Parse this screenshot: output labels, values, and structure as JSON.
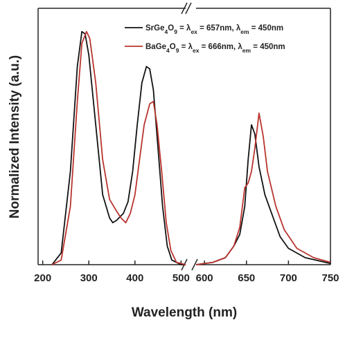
{
  "chart_data": {
    "type": "line",
    "x_label": "Wavelength (nm)",
    "y_label": "Normalized Intensity (a.u.)",
    "xlim": [
      190,
      750
    ],
    "x_break": [
      510,
      590
    ],
    "xticks": [
      200,
      300,
      400,
      500,
      600,
      650,
      700,
      750
    ],
    "ylim": [
      0,
      1.1
    ],
    "legend_position": "upper right",
    "series": [
      {
        "name": "SrGe4O9 = λex = 657nm, λem = 450nm",
        "color": "#111111",
        "x": [
          220,
          240,
          260,
          275,
          285,
          292,
          300,
          315,
          330,
          345,
          352,
          360,
          375,
          385,
          395,
          405,
          415,
          425,
          432,
          440,
          450,
          460,
          470,
          480,
          500,
          510,
          null,
          590,
          610,
          625,
          635,
          642,
          648,
          652,
          656,
          660,
          665,
          672,
          680,
          690,
          700,
          720,
          750
        ],
        "values": [
          0,
          0.05,
          0.4,
          0.85,
          1.0,
          0.99,
          0.9,
          0.6,
          0.3,
          0.2,
          0.18,
          0.19,
          0.22,
          0.27,
          0.4,
          0.6,
          0.78,
          0.85,
          0.84,
          0.75,
          0.5,
          0.25,
          0.08,
          0.02,
          0,
          0,
          null,
          0,
          0.01,
          0.03,
          0.08,
          0.13,
          0.25,
          0.45,
          0.6,
          0.56,
          0.42,
          0.3,
          0.22,
          0.12,
          0.07,
          0.03,
          0.005
        ]
      },
      {
        "name": "BaGe4O9 = λex = 666nm, λem = 450nm",
        "color": "#b8332e",
        "x": [
          220,
          240,
          260,
          275,
          285,
          295,
          302,
          315,
          330,
          345,
          360,
          370,
          380,
          390,
          400,
          410,
          420,
          432,
          440,
          448,
          458,
          468,
          478,
          490,
          510,
          null,
          590,
          610,
          625,
          635,
          642,
          648,
          652,
          656,
          660,
          665,
          670,
          675,
          685,
          695,
          710,
          730,
          750
        ],
        "values": [
          0,
          0.02,
          0.25,
          0.7,
          0.95,
          1.0,
          0.97,
          0.78,
          0.45,
          0.28,
          0.23,
          0.2,
          0.18,
          0.22,
          0.3,
          0.45,
          0.6,
          0.69,
          0.7,
          0.6,
          0.4,
          0.18,
          0.06,
          0.01,
          0,
          null,
          0,
          0.01,
          0.03,
          0.08,
          0.16,
          0.33,
          0.35,
          0.4,
          0.5,
          0.65,
          0.55,
          0.4,
          0.25,
          0.15,
          0.07,
          0.03,
          0.01
        ]
      }
    ]
  }
}
